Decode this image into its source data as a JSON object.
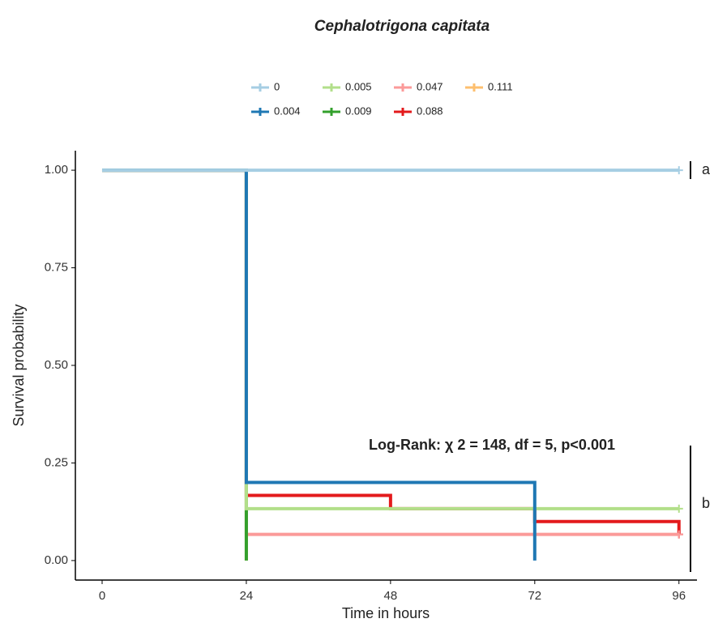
{
  "chart_data": {
    "type": "step",
    "title": "Cephalotrigona capitata",
    "x_label": "Time in hours",
    "y_label": "Survival probability",
    "xlim": [
      -4.45,
      99
    ],
    "xticks": [
      0,
      24,
      48,
      72,
      96
    ],
    "ylim": [
      -0.05,
      1.05
    ],
    "yticks": [
      {
        "value": 0,
        "label": "0.00"
      },
      {
        "value": 0.25,
        "label": "0.25"
      },
      {
        "value": 0.5,
        "label": "0.50"
      },
      {
        "value": 0.75,
        "label": "0.75"
      },
      {
        "value": 1,
        "label": "1.00"
      }
    ],
    "series": [
      {
        "name": "0",
        "color": "#a6cee3",
        "x": [
          0,
          96
        ],
        "values": [
          1,
          1
        ]
      },
      {
        "name": "0.004",
        "color": "#1f78b4",
        "x": [
          0,
          24,
          72
        ],
        "values": [
          1,
          0.2,
          0
        ]
      },
      {
        "name": "0.005",
        "color": "#b2df8a",
        "x": [
          0,
          24,
          96
        ],
        "values": [
          1,
          0.133,
          0.133
        ]
      },
      {
        "name": "0.009",
        "color": "#33a02c",
        "x": [
          0,
          24
        ],
        "values": [
          1,
          0
        ]
      },
      {
        "name": "0.047",
        "color": "#fb9a99",
        "x": [
          0,
          24,
          96
        ],
        "values": [
          1,
          0.067,
          0.067
        ]
      },
      {
        "name": "0.088",
        "color": "#e31a1c",
        "x": [
          0,
          24,
          48,
          72,
          96
        ],
        "values": [
          1,
          0.167,
          0.133,
          0.1,
          0.067
        ]
      },
      {
        "name": "0.111",
        "color": "#fdbf6f",
        "x": [
          0,
          24
        ],
        "values": [
          1,
          0
        ]
      }
    ],
    "annotations": [
      "Log-Rank: χ 2 = 148, df = 5, p<0.001",
      "a",
      "b"
    ]
  }
}
